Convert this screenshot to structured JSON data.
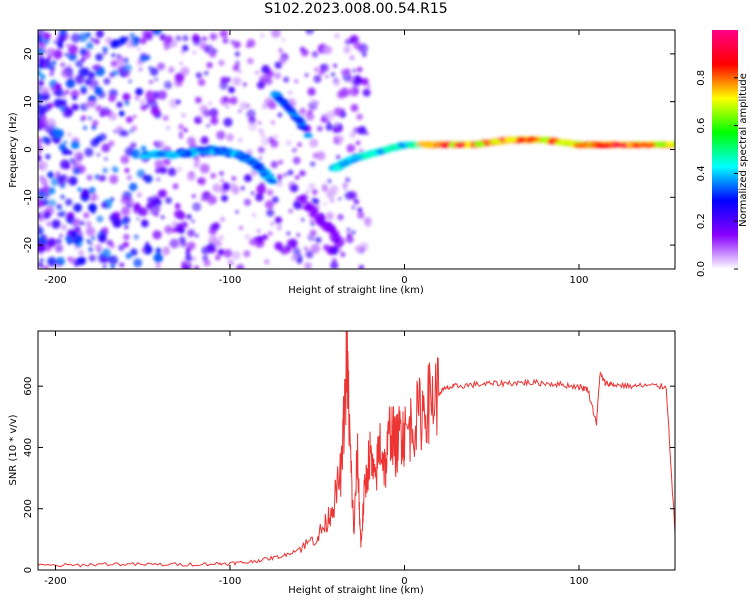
{
  "title": "S102.2023.008.00.54.R15",
  "colors": {
    "axis": "#000000",
    "snr_line": "#ee3333",
    "background": "#ffffff"
  },
  "chart_data": [
    {
      "type": "heatmap",
      "title": "",
      "xlabel": "Height of straight line (km)",
      "ylabel": "Frequency (Hz)",
      "xlim": [
        -210,
        155
      ],
      "ylim": [
        -25,
        25
      ],
      "xticks": [
        -200,
        -100,
        0,
        100
      ],
      "xtick_labels": [
        "-200",
        "-100",
        "0",
        "100"
      ],
      "yticks": [
        -20,
        -10,
        0,
        10,
        20
      ],
      "ytick_labels": [
        "-20",
        "-10",
        "0",
        "10",
        "20"
      ],
      "ridge": {
        "description_points_x": [
          -150,
          -130,
          -110,
          -95,
          -85,
          -75
        ],
        "description_points_y": [
          -1,
          -1,
          0,
          -1,
          -3,
          -7
        ],
        "carrier_x": [
          -40,
          -30,
          -20,
          -10,
          0,
          20,
          40,
          60,
          80,
          100,
          120,
          155
        ],
        "carrier_y": [
          -4,
          -2,
          -1,
          0,
          1,
          1,
          1,
          2,
          2,
          1,
          1,
          1
        ],
        "rising_branch_x": [
          -75,
          -70,
          -62,
          -55
        ],
        "rising_branch_y": [
          12,
          10,
          7,
          3
        ],
        "falling_branch_x": [
          -60,
          -50,
          -42,
          -38
        ],
        "falling_branch_y": [
          -10,
          -14,
          -17,
          -19
        ]
      },
      "colorbar": {
        "label": "Normalized spectral amplitude",
        "range": [
          0,
          1
        ],
        "ticks": [
          0.0,
          0.2,
          0.4,
          0.6,
          0.8
        ],
        "tick_labels": [
          "0.0",
          "0.2",
          "0.4",
          "0.6",
          "0.8"
        ],
        "colormap": [
          "#ffffff",
          "#8800ff",
          "#0000ff",
          "#00ffff",
          "#00ff00",
          "#ffff00",
          "#ff0000",
          "#ff0088"
        ]
      }
    },
    {
      "type": "line",
      "title": "",
      "xlabel": "Height of straight line (km)",
      "ylabel": "SNR (10 * v/v)",
      "xlim": [
        -210,
        155
      ],
      "ylim": [
        0,
        780
      ],
      "xticks": [
        -200,
        -100,
        0,
        100
      ],
      "xtick_labels": [
        "-200",
        "-100",
        "0",
        "100"
      ],
      "yticks": [
        0,
        200,
        400,
        600
      ],
      "ytick_labels": [
        "0",
        "200",
        "400",
        "600"
      ],
      "series": [
        {
          "name": "SNR",
          "x": [
            -210,
            -190,
            -170,
            -150,
            -130,
            -110,
            -100,
            -90,
            -80,
            -70,
            -60,
            -50,
            -45,
            -40,
            -36,
            -33,
            -31,
            -29,
            -27,
            -25,
            -23,
            -20,
            -17,
            -14,
            -11,
            -8,
            -5,
            -2,
            0,
            5,
            10,
            15,
            20,
            25,
            30,
            40,
            50,
            60,
            70,
            80,
            90,
            100,
            105,
            110,
            112,
            115,
            120,
            130,
            140,
            150,
            155
          ],
          "values": [
            15,
            15,
            20,
            18,
            18,
            20,
            22,
            25,
            35,
            45,
            70,
            110,
            150,
            230,
            330,
            700,
            380,
            120,
            380,
            80,
            250,
            380,
            280,
            420,
            330,
            470,
            400,
            460,
            440,
            480,
            520,
            555,
            580,
            595,
            600,
            605,
            608,
            610,
            612,
            610,
            605,
            598,
            590,
            480,
            640,
            610,
            605,
            600,
            602,
            598,
            120
          ]
        }
      ]
    }
  ]
}
